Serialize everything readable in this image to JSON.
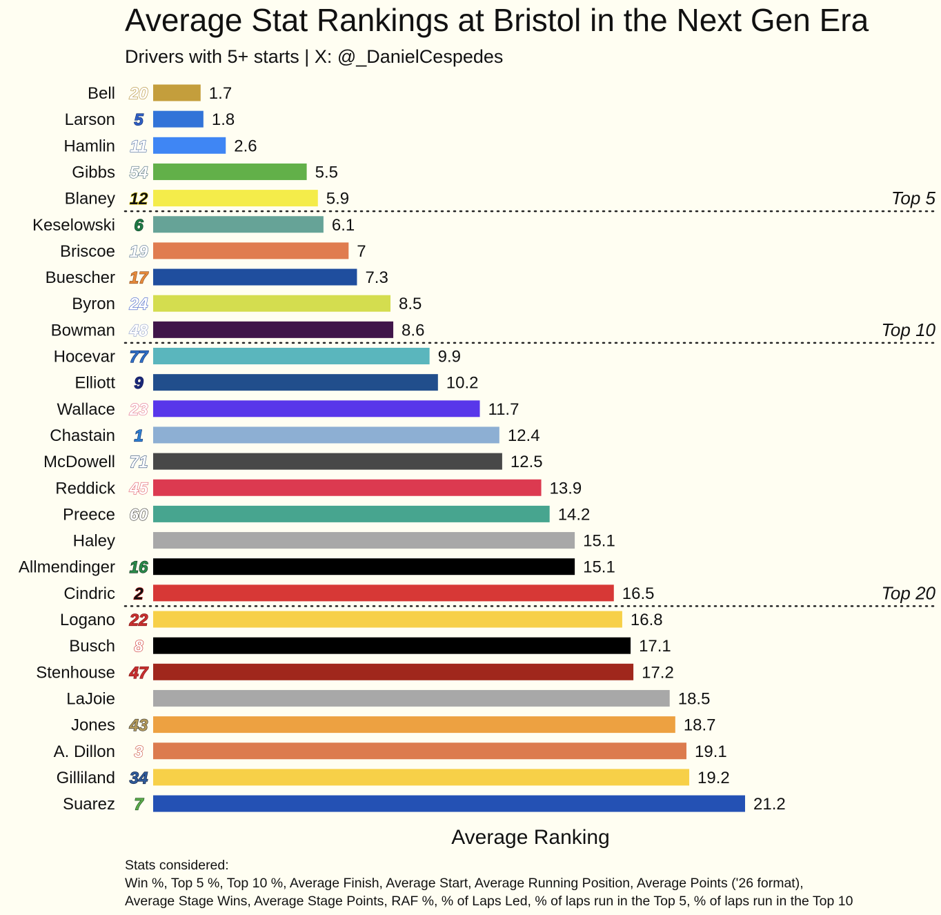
{
  "chart_data": {
    "type": "bar",
    "orientation": "horizontal",
    "title": "Average Stat Rankings at Bristol in the Next Gen Era",
    "subtitle": "Drivers with 5+ starts | X: @_DanielCespedes",
    "xlabel": "Average Ranking",
    "ylabel": "",
    "xlim": [
      0,
      21.2
    ],
    "grid": false,
    "legend": "none",
    "categories": [
      "Bell",
      "Larson",
      "Hamlin",
      "Gibbs",
      "Blaney",
      "Keselowski",
      "Briscoe",
      "Buescher",
      "Byron",
      "Bowman",
      "Hocevar",
      "Elliott",
      "Wallace",
      "Chastain",
      "McDowell",
      "Reddick",
      "Preece",
      "Haley",
      "Allmendinger",
      "Cindric",
      "Logano",
      "Busch",
      "Stenhouse",
      "LaJoie",
      "Jones",
      "A. Dillon",
      "Gilliland",
      "Suarez"
    ],
    "car_numbers": [
      "20",
      "5",
      "11",
      "54",
      "12",
      "6",
      "19",
      "17",
      "24",
      "48",
      "77",
      "9",
      "23",
      "1",
      "71",
      "45",
      "60",
      "",
      "16",
      "2",
      "22",
      "8",
      "47",
      "",
      "43",
      "3",
      "34",
      "7"
    ],
    "values": [
      1.7,
      1.8,
      2.6,
      5.5,
      5.9,
      6.1,
      7,
      7.3,
      8.5,
      8.6,
      9.9,
      10.2,
      11.7,
      12.4,
      12.5,
      13.9,
      14.2,
      15.1,
      15.1,
      16.5,
      16.8,
      17.1,
      17.2,
      18.5,
      18.7,
      19.1,
      19.2,
      21.2
    ],
    "value_labels": [
      "1.7",
      "1.8",
      "2.6",
      "5.5",
      "5.9",
      "6.1",
      "7",
      "7.3",
      "8.5",
      "8.6",
      "9.9",
      "10.2",
      "11.7",
      "12.4",
      "12.5",
      "13.9",
      "14.2",
      "15.1",
      "15.1",
      "16.5",
      "16.8",
      "17.1",
      "17.2",
      "18.5",
      "18.7",
      "19.1",
      "19.2",
      "21.2"
    ],
    "bar_colors": [
      "#c49e3c",
      "#3274d8",
      "#3f86f4",
      "#62b049",
      "#f4ec4a",
      "#66a397",
      "#e07c4f",
      "#1f4e9e",
      "#d4dd4f",
      "#40154a",
      "#5ab6bd",
      "#214e8c",
      "#5837ea",
      "#8dafd3",
      "#484848",
      "#dc3a50",
      "#47a58f",
      "#a8a8a8",
      "#000000",
      "#d73836",
      "#f7d048",
      "#000000",
      "#a0271c",
      "#a8a8a8",
      "#eda141",
      "#dc7b4e",
      "#f7d048",
      "#2451b4"
    ],
    "badge_colors": [
      "#ffffff",
      "#2f5fc4",
      "#ffffff",
      "#ffffff",
      "#111111",
      "#1f7a45",
      "#ffffff",
      "#e58a3c",
      "#ffffff",
      "#ffffff",
      "#2f6fc4",
      "#1a2a7a",
      "#ffffff",
      "#2f7fd0",
      "#ffffff",
      "#ffffff",
      "#ffffff",
      "#ffffff",
      "#2a8a4a",
      "#111111",
      "#c83030",
      "#ffffff",
      "#c83030",
      "#ffffff",
      "#b49a5a",
      "#ffffff",
      "#2f5a9a",
      "#5aaa4a"
    ],
    "badge_strokes": [
      "#b08a30",
      "#0d2a6a",
      "#4a6aa0",
      "#4a6a7a",
      "#f4dc20",
      "#0a3a20",
      "#4a6a8a",
      "#8a4a1a",
      "#3a5ac8",
      "#8a9ac8",
      "#0a2a6a",
      "#0a0a4a",
      "#e06a8a",
      "#0a2a6a",
      "#2a4a7a",
      "#e05a6a",
      "#333333",
      "#999999",
      "#0a2a1a",
      "#c82020",
      "#7a1010",
      "#c82020",
      "#7a1010",
      "#999999",
      "#333333",
      "#c84a3a",
      "#0a1a3a",
      "#1a4a1a"
    ],
    "thresholds": [
      {
        "after": "Blaney",
        "label": "Top 5"
      },
      {
        "after": "Bowman",
        "label": "Top 10"
      },
      {
        "after": "Cindric",
        "label": "Top 20"
      }
    ]
  },
  "caption": {
    "heading": "Stats considered:",
    "line1": "Win %, Top 5 %, Top 10 %, Average Finish, Average Start, Average Running Position, Average Points ('26 format),",
    "line2": "Average Stage Wins, Average Stage Points, RAF %, % of Laps Led, % of laps run in the Top 5, % of laps run in the Top 10"
  }
}
